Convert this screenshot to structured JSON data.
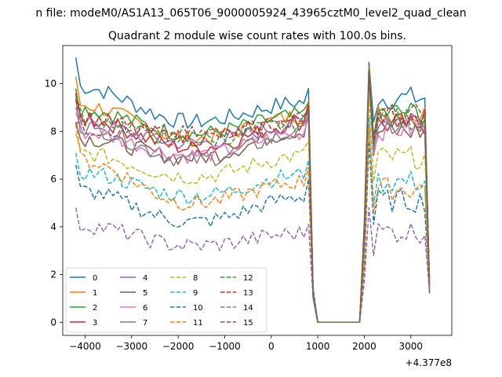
{
  "chart_data": {
    "type": "line",
    "suptitle": "n file: modeM0/AS1A13_065T06_9000005924_43965cztM0_level2_quad_clean",
    "title": "Quadrant 2 module wise count rates with 100.0s bins.",
    "xlabel": "",
    "ylabel": "",
    "x_offset_label": "+4.377e8",
    "xlim": [
      -4480,
      3880
    ],
    "ylim": [
      -0.55,
      11.6
    ],
    "x_ticks": [
      -4000,
      -3000,
      -2000,
      -1000,
      0,
      1000,
      2000,
      3000
    ],
    "x_tick_labels": [
      "−4000",
      "−3000",
      "−2000",
      "−1000",
      "0",
      "1000",
      "2000",
      "3000"
    ],
    "y_ticks": [
      0,
      2,
      4,
      6,
      8,
      10
    ],
    "y_tick_labels": [
      "0",
      "2",
      "4",
      "6",
      "8",
      "10"
    ],
    "grid": false,
    "legend_position": "lower left",
    "legend_columns": 4,
    "bin_s": 100,
    "x_start": -4200,
    "series": [
      {
        "name": "0",
        "color": "#1f77b4",
        "dash": "solid",
        "base": 8.4,
        "start": 11.1,
        "peak_pre": 9.8,
        "peak_post": 10.9,
        "level_post": 9.4
      },
      {
        "name": "1",
        "color": "#ff7f0e",
        "dash": "solid",
        "base": 7.7,
        "start": 10.3,
        "peak_pre": 9.3,
        "peak_post": 10.7,
        "level_post": 8.7
      },
      {
        "name": "2",
        "color": "#2ca02c",
        "dash": "solid",
        "base": 7.9,
        "start": 9.8,
        "peak_pre": 9.2,
        "peak_post": 10.6,
        "level_post": 8.8
      },
      {
        "name": "3",
        "color": "#d62728",
        "dash": "solid",
        "base": 7.3,
        "start": 9.6,
        "peak_pre": 9.1,
        "peak_post": 10.5,
        "level_post": 8.3
      },
      {
        "name": "4",
        "color": "#9467bd",
        "dash": "solid",
        "base": 7.5,
        "start": 9.0,
        "peak_pre": 8.9,
        "peak_post": 10.4,
        "level_post": 8.5
      },
      {
        "name": "5",
        "color": "#8c564b",
        "dash": "solid",
        "base": 6.9,
        "start": 8.4,
        "peak_pre": 8.8,
        "peak_post": 10.3,
        "level_post": 8.0
      },
      {
        "name": "6",
        "color": "#e377c2",
        "dash": "solid",
        "base": 7.0,
        "start": 8.8,
        "peak_pre": 8.6,
        "peak_post": 10.2,
        "level_post": 8.1
      },
      {
        "name": "7",
        "color": "#7f7f7f",
        "dash": "solid",
        "base": 6.8,
        "start": 9.4,
        "peak_pre": 8.7,
        "peak_post": 10.2,
        "level_post": 8.2
      },
      {
        "name": "8",
        "color": "#bcbd22",
        "dash": "dashed",
        "base": 6.1,
        "start": 7.9,
        "peak_pre": 7.6,
        "peak_post": 9.4,
        "level_post": 6.9
      },
      {
        "name": "9",
        "color": "#17becf",
        "dash": "dashed",
        "base": 5.3,
        "start": 7.1,
        "peak_pre": 6.8,
        "peak_post": 8.6,
        "level_post": 5.9
      },
      {
        "name": "10",
        "color": "#1f77b4",
        "dash": "dashed",
        "base": 4.2,
        "start": 6.6,
        "peak_pre": 6.0,
        "peak_post": 7.6,
        "level_post": 5.1
      },
      {
        "name": "11",
        "color": "#ff7f0e",
        "dash": "dashed",
        "base": 5.0,
        "start": 8.3,
        "peak_pre": 6.5,
        "peak_post": 8.2,
        "level_post": 5.6
      },
      {
        "name": "12",
        "color": "#2ca02c",
        "dash": "dashed",
        "base": 7.6,
        "start": 9.5,
        "peak_pre": 8.9,
        "peak_post": 10.4,
        "level_post": 8.5
      },
      {
        "name": "13",
        "color": "#d62728",
        "dash": "dashed",
        "base": 7.7,
        "start": 9.3,
        "peak_pre": 9.0,
        "peak_post": 10.3,
        "level_post": 8.6
      },
      {
        "name": "14",
        "color": "#9467bd",
        "dash": "dashed",
        "base": 3.2,
        "start": 4.8,
        "peak_pre": 4.1,
        "peak_post": 4.8,
        "level_post": 3.8
      },
      {
        "name": "15",
        "color": "#8c564b",
        "dash": "dashed",
        "base": 7.9,
        "start": 8.3,
        "peak_pre": 8.9,
        "peak_post": 10.4,
        "level_post": 8.7
      }
    ]
  }
}
